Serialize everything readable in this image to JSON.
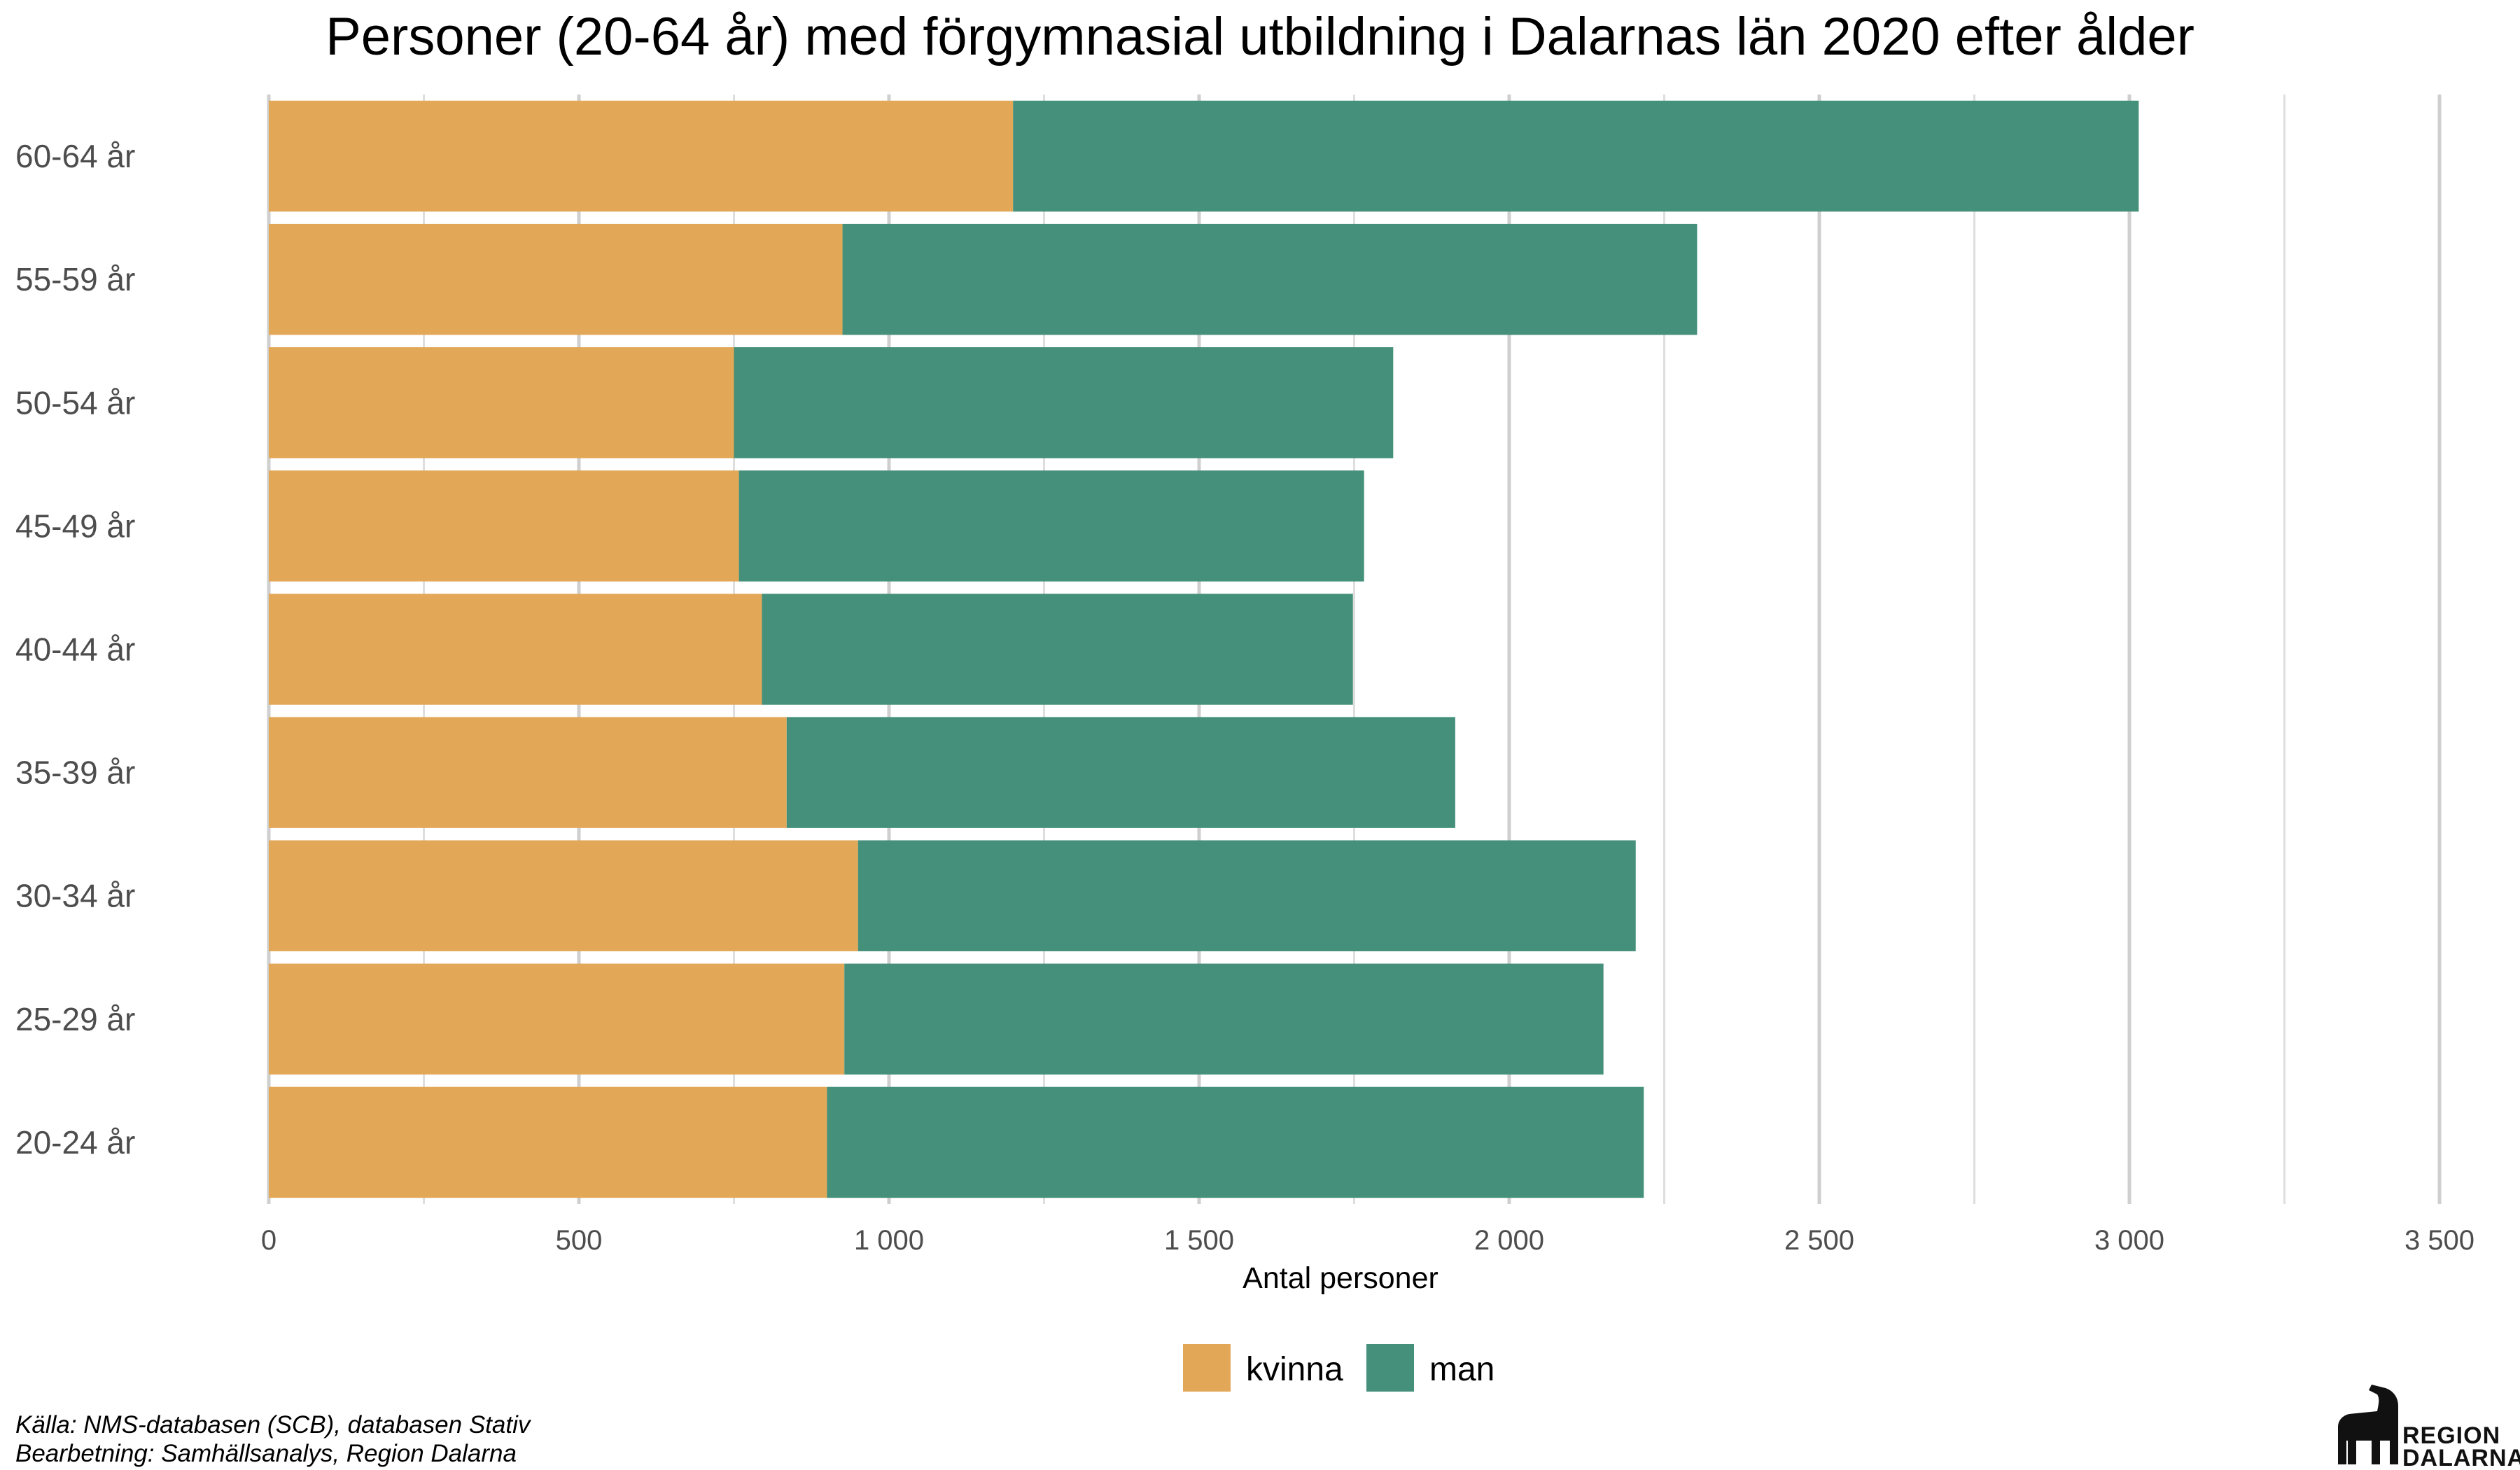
{
  "chart_data": {
    "type": "bar",
    "orientation": "horizontal",
    "stacked": true,
    "title": "Personer (20-64 år) med förgymnasial utbildning i Dalarnas län 2020 efter ålder",
    "xlabel": "Antal personer",
    "ylabel": "",
    "xlim": [
      0,
      3500
    ],
    "x_ticks": [
      0,
      500,
      1000,
      1500,
      2000,
      2500,
      3000,
      3500
    ],
    "x_tick_labels": [
      "0",
      "500",
      "1 000",
      "1 500",
      "2 000",
      "2 500",
      "3 000",
      "3 500"
    ],
    "categories": [
      "60-64 år",
      "55-59 år",
      "50-54 år",
      "45-49 år",
      "40-44 år",
      "35-39 år",
      "30-34 år",
      "25-29 år",
      "20-24 år"
    ],
    "series": [
      {
        "name": "kvinna",
        "color": "#E3A857",
        "values": [
          1200,
          925,
          750,
          758,
          795,
          835,
          950,
          928,
          900
        ]
      },
      {
        "name": "man",
        "color": "#45907A",
        "values": [
          1815,
          1378,
          1063,
          1008,
          953,
          1078,
          1254,
          1224,
          1317
        ]
      }
    ],
    "grid": true,
    "legend_position": "bottom"
  },
  "caption": {
    "source": "Källa: NMS-databasen (SCB), databasen Stativ",
    "processing": "Bearbetning: Samhällsanalys, Region Dalarna"
  },
  "logo": {
    "line1": "REGION",
    "line2": "DALARNA",
    "icon": "dala-horse-icon"
  }
}
